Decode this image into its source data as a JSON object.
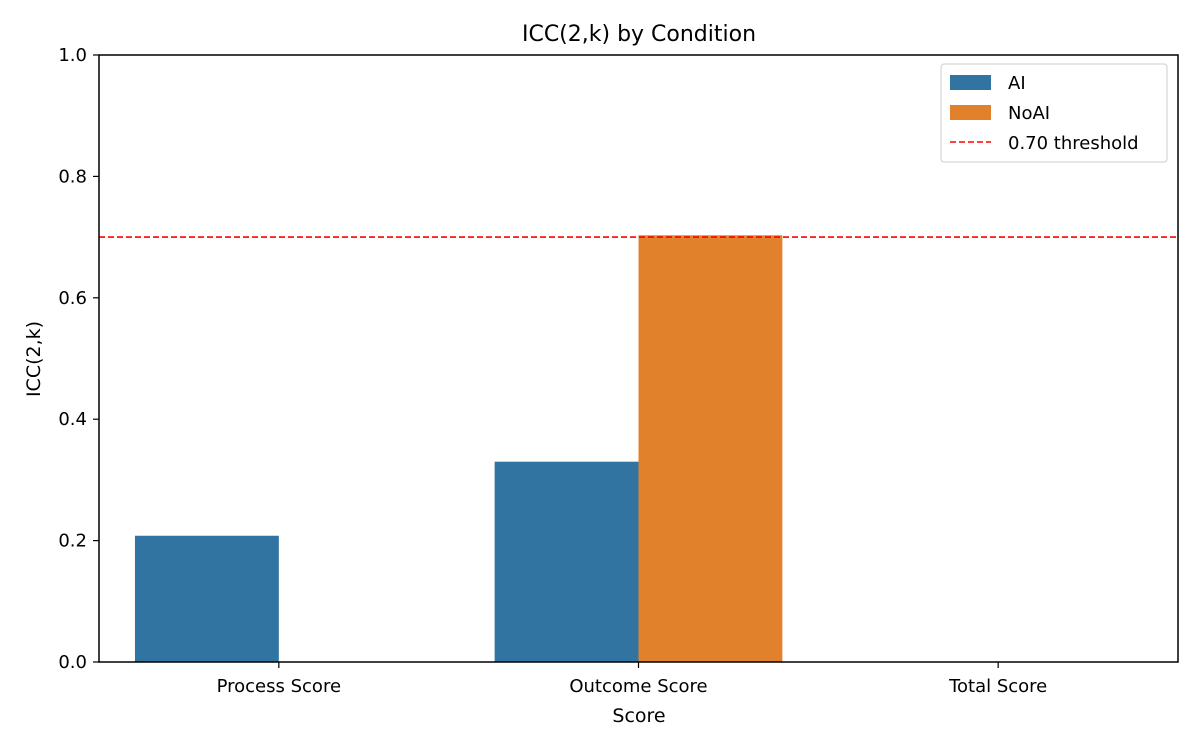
{
  "chart_data": {
    "type": "bar",
    "title": "ICC(2,k) by Condition",
    "xlabel": "Score",
    "ylabel": "ICC(2,k)",
    "categories": [
      "Process Score",
      "Outcome Score",
      "Total Score"
    ],
    "series": [
      {
        "name": "AI",
        "values": [
          0.208,
          0.33,
          null
        ],
        "color": "#3274a1"
      },
      {
        "name": "NoAI",
        "values": [
          null,
          0.703,
          null
        ],
        "color": "#e1812c"
      }
    ],
    "ylim": [
      0,
      1.0
    ],
    "yticks": [
      0.0,
      0.2,
      0.4,
      0.6,
      0.8,
      1.0
    ],
    "ytick_labels": [
      "0.0",
      "0.2",
      "0.4",
      "0.6",
      "0.8",
      "1.0"
    ],
    "threshold": {
      "value": 0.7,
      "label": "0.70 threshold",
      "color": "#ff0000"
    },
    "grid": false,
    "legend_position": "top-right"
  }
}
